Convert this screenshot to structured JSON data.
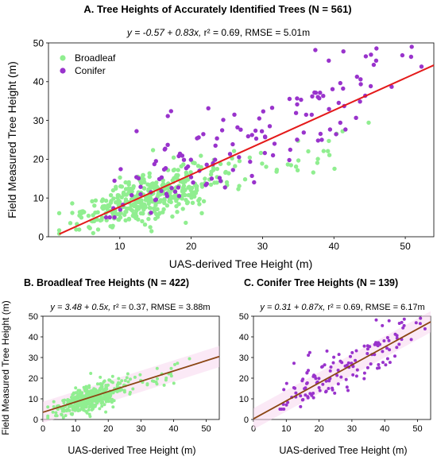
{
  "colors": {
    "broadleaf": "#90ee90",
    "conifer": "#9933cc",
    "fit_main": "#e41a1a",
    "fit_small": "#8b4513",
    "band": "#f7d7ee"
  },
  "chart_data": [
    {
      "type": "scatter",
      "title": "A. Tree Heights of Accurately Identified Trees (N = 561)",
      "equation": {
        "prefix": "y = -0.57 + 0.83x,",
        "r2": "r² = 0.69,",
        "rmse": "RMSE = 5.01m"
      },
      "xlabel": "UAS-derived Tree Height (m)",
      "ylabel": "Field Measured Tree Height (m)",
      "xlim": [
        0,
        54
      ],
      "ylim": [
        0,
        50
      ],
      "xticks": [
        10,
        20,
        30,
        40,
        50
      ],
      "yticks": [
        0,
        10,
        20,
        30,
        40,
        50
      ],
      "legend": {
        "position": "top-left",
        "items": [
          "Broadleaf",
          "Conifer"
        ]
      },
      "fit": {
        "intercept": -0.57,
        "slope": 0.83
      },
      "series": [
        {
          "name": "Broadleaf",
          "n": 422,
          "color": "#90ee90"
        },
        {
          "name": "Conifer",
          "n": 139,
          "color": "#9933cc"
        }
      ]
    },
    {
      "type": "scatter",
      "title": "B. Broadleaf Tree Heights (N = 422)",
      "equation": {
        "prefix": "y = 3.48 + 0.5x,",
        "r2": "r² = 0.37,",
        "rmse": "RMSE = 3.88m"
      },
      "xlabel": "UAS-derived Tree Height (m)",
      "ylabel": "Field Measured Tree Height (m)",
      "xlim": [
        0,
        54
      ],
      "ylim": [
        0,
        50
      ],
      "xticks": [
        0,
        10,
        20,
        30,
        40,
        50
      ],
      "yticks": [
        0,
        10,
        20,
        30,
        40,
        50
      ],
      "fit": {
        "intercept": 3.48,
        "slope": 0.5
      },
      "series": [
        {
          "name": "Broadleaf",
          "n": 422,
          "color": "#90ee90"
        }
      ]
    },
    {
      "type": "scatter",
      "title": "C. Conifer Tree Heights (N = 139)",
      "equation": {
        "prefix": "y = 0.31 + 0.87x,",
        "r2": "r² = 0.69,",
        "rmse": "RMSE = 6.17m"
      },
      "xlabel": "UAS-derived Tree Height (m)",
      "ylabel": "",
      "xlim": [
        0,
        54
      ],
      "ylim": [
        0,
        50
      ],
      "xticks": [
        0,
        10,
        20,
        30,
        40,
        50
      ],
      "yticks": [
        0,
        10,
        20,
        30,
        40,
        50
      ],
      "fit": {
        "intercept": 0.31,
        "slope": 0.87
      },
      "series": [
        {
          "name": "Conifer",
          "n": 139,
          "color": "#9933cc"
        }
      ]
    }
  ]
}
